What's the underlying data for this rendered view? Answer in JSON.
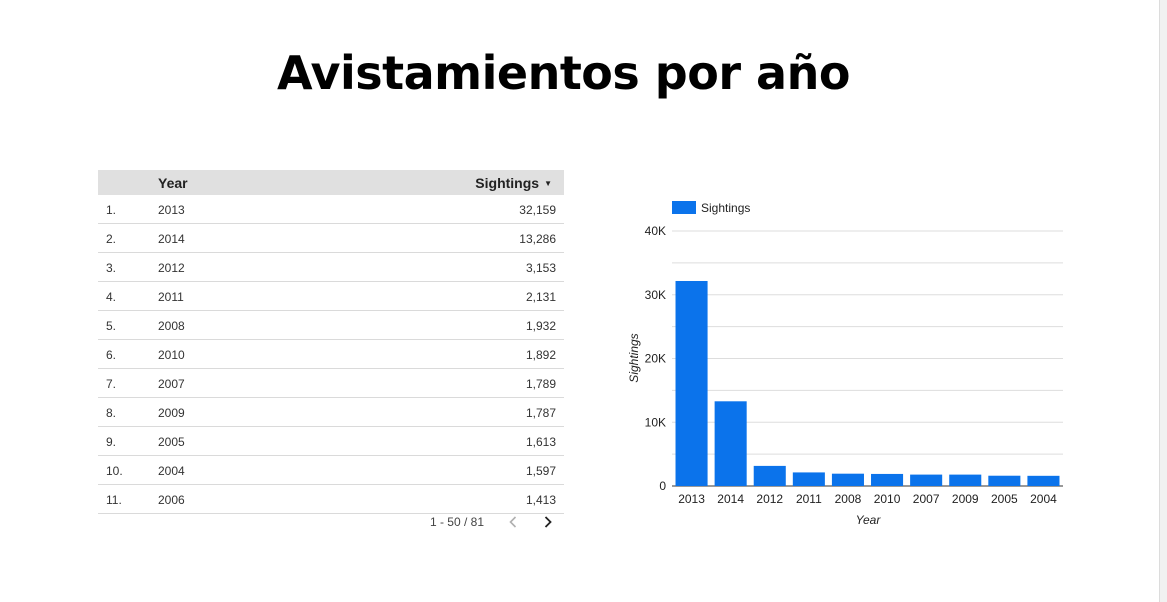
{
  "page": {
    "title": "Avistamientos por año"
  },
  "table": {
    "headers": {
      "year": "Year",
      "sightings": "Sightings"
    },
    "rows": [
      {
        "idx": "1.",
        "year": "2013",
        "sightings": "32,159"
      },
      {
        "idx": "2.",
        "year": "2014",
        "sightings": "13,286"
      },
      {
        "idx": "3.",
        "year": "2012",
        "sightings": "3,153"
      },
      {
        "idx": "4.",
        "year": "2011",
        "sightings": "2,131"
      },
      {
        "idx": "5.",
        "year": "2008",
        "sightings": "1,932"
      },
      {
        "idx": "6.",
        "year": "2010",
        "sightings": "1,892"
      },
      {
        "idx": "7.",
        "year": "2007",
        "sightings": "1,789"
      },
      {
        "idx": "8.",
        "year": "2009",
        "sightings": "1,787"
      },
      {
        "idx": "9.",
        "year": "2005",
        "sightings": "1,613"
      },
      {
        "idx": "10.",
        "year": "2004",
        "sightings": "1,597"
      },
      {
        "idx": "11.",
        "year": "2006",
        "sightings": "1,413"
      }
    ],
    "pagination": {
      "label": "1 - 50 / 81"
    }
  },
  "chart_data": {
    "type": "bar",
    "categories": [
      "2013",
      "2014",
      "2012",
      "2011",
      "2008",
      "2010",
      "2007",
      "2009",
      "2005",
      "2004"
    ],
    "series": [
      {
        "name": "Sightings",
        "values": [
          32159,
          13286,
          3153,
          2131,
          1932,
          1892,
          1789,
          1787,
          1613,
          1597
        ]
      }
    ],
    "xlabel": "Year",
    "ylabel": "Sightings",
    "ylim": [
      0,
      40000
    ],
    "yticks": [
      0,
      10000,
      20000,
      30000,
      40000
    ],
    "ytick_labels": [
      "0",
      "10K",
      "20K",
      "30K",
      "40K"
    ],
    "grid": true,
    "legend": "top-left",
    "color": "#0b73eb"
  }
}
